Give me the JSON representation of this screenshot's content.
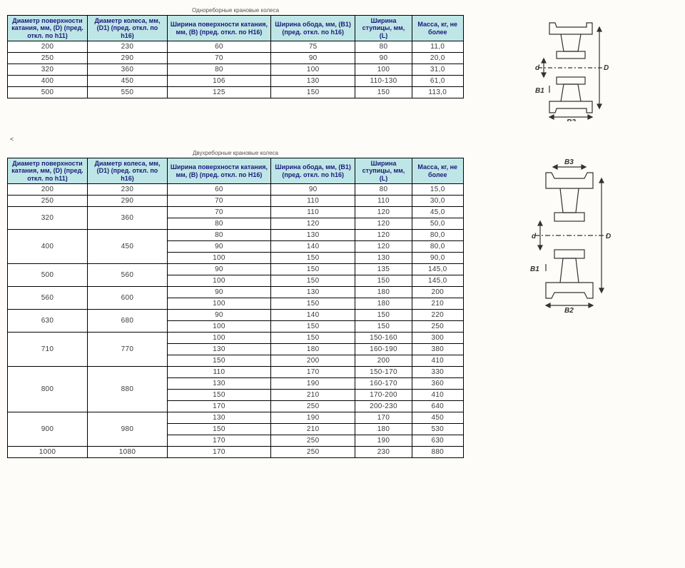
{
  "colors": {
    "header_bg": "#bfe6e6",
    "border": "#000000",
    "header_text": "#1a1a7a",
    "cell_text": "#3a3a3a",
    "page_bg": "#fdfcf8"
  },
  "fonts": {
    "base_family": "Arial",
    "header_size": 9,
    "cell_size": 10,
    "caption_size": 8
  },
  "columns": {
    "c0": "Диаметр поверхности катания, мм, (D) (пред. откл. по h11)",
    "c1": "Диаметр колеса, мм, (D1) (пред. откл. по h16)",
    "c2": "Ширина поверхности катания, мм, (B) (пред. откл. по H16)",
    "c3": "Ширина обода, мм, (B1) (пред. откл. по h16)",
    "c4": "Ширина ступицы, мм, (L)",
    "c5": "Масса, кг, не более"
  },
  "col_widths": [
    "17%",
    "17%",
    "22%",
    "18%",
    "12%",
    "11%"
  ],
  "table1": {
    "caption": "Однореборные крановые колеса",
    "rows": [
      [
        "200",
        "230",
        "60",
        "75",
        "80",
        "11,0"
      ],
      [
        "250",
        "290",
        "70",
        "90",
        "90",
        "20,0"
      ],
      [
        "320",
        "360",
        "80",
        "100",
        "100",
        "31,0"
      ],
      [
        "400",
        "450",
        "106",
        "130",
        "110-130",
        "61,0"
      ],
      [
        "500",
        "550",
        "125",
        "150",
        "150",
        "113,0"
      ]
    ]
  },
  "back_mark": "<",
  "table2": {
    "caption": "Двухреборные крановые колеса",
    "rows": [
      {
        "D": "200",
        "D1": "230",
        "v": [
          [
            "60",
            "90",
            "80",
            "15,0"
          ]
        ]
      },
      {
        "D": "250",
        "D1": "290",
        "v": [
          [
            "70",
            "110",
            "110",
            "30,0"
          ]
        ]
      },
      {
        "D": "320",
        "D1": "360",
        "v": [
          [
            "70",
            "110",
            "120",
            "45,0"
          ],
          [
            "80",
            "120",
            "120",
            "50,0"
          ]
        ]
      },
      {
        "D": "400",
        "D1": "450",
        "v": [
          [
            "80",
            "130",
            "120",
            "80,0"
          ],
          [
            "90",
            "140",
            "120",
            "80,0"
          ],
          [
            "100",
            "150",
            "130",
            "90,0"
          ]
        ]
      },
      {
        "D": "500",
        "D1": "560",
        "v": [
          [
            "90",
            "150",
            "135",
            "145,0"
          ],
          [
            "100",
            "150",
            "150",
            "145,0"
          ]
        ]
      },
      {
        "D": "560",
        "D1": "600",
        "v": [
          [
            "90",
            "130",
            "180",
            "200"
          ],
          [
            "100",
            "150",
            "180",
            "210"
          ]
        ]
      },
      {
        "D": "630",
        "D1": "680",
        "v": [
          [
            "90",
            "140",
            "150",
            "220"
          ],
          [
            "100",
            "150",
            "150",
            "250"
          ]
        ]
      },
      {
        "D": "710",
        "D1": "770",
        "v": [
          [
            "100",
            "150",
            "150-160",
            "300"
          ],
          [
            "130",
            "180",
            "160-190",
            "380"
          ],
          [
            "150",
            "200",
            "200",
            "410"
          ]
        ]
      },
      {
        "D": "800",
        "D1": "880",
        "v": [
          [
            "110",
            "170",
            "150-170",
            "330"
          ],
          [
            "130",
            "190",
            "160-170",
            "360"
          ],
          [
            "150",
            "210",
            "170-200",
            "410"
          ],
          [
            "170",
            "250",
            "200-230",
            "640"
          ]
        ]
      },
      {
        "D": "900",
        "D1": "980",
        "v": [
          [
            "130",
            "190",
            "170",
            "450"
          ],
          [
            "150",
            "210",
            "180",
            "530"
          ],
          [
            "170",
            "250",
            "190",
            "630"
          ]
        ]
      },
      {
        "D": "1000",
        "D1": "1080",
        "v": [
          [
            "170",
            "250",
            "230",
            "880"
          ]
        ]
      }
    ]
  },
  "figures": {
    "labels": {
      "d": "d",
      "D": "D",
      "B1": "B1",
      "B2": "B2",
      "B3": "B3"
    },
    "stroke": "#333333",
    "stroke_width": 1.2
  }
}
